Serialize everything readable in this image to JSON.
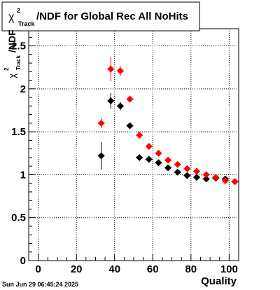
{
  "chart_data": {
    "type": "scatter",
    "title": {
      "symbol": "χ",
      "superscript": "2",
      "subscript": "Track",
      "text": "/NDF for Global Rec All NoHits"
    },
    "ylabel": {
      "symbol": "χ",
      "superscript": "2",
      "subscript": "Track",
      "text": "/NDF"
    },
    "xlabel": "Quality",
    "xlim": [
      -5,
      105
    ],
    "ylim": [
      0,
      2.7
    ],
    "xticks": [
      0,
      20,
      40,
      60,
      80,
      100
    ],
    "xtick_labels": [
      "0",
      "20",
      "40",
      "60",
      "80",
      "100"
    ],
    "yticks": [
      0,
      0.5,
      1,
      1.5,
      2,
      2.5
    ],
    "ytick_labels": [
      "0",
      "0.5",
      "1",
      "1.5",
      "2",
      "2.5"
    ],
    "grid": true,
    "timestamp": "Sun Jun 29 06:45:24 2025",
    "series": [
      {
        "color": "#000000",
        "points": [
          {
            "x": 33,
            "y": 1.22,
            "err": 0.16
          },
          {
            "x": 38,
            "y": 1.86,
            "err": 0.09
          },
          {
            "x": 43,
            "y": 1.8,
            "err": 0.05
          },
          {
            "x": 48,
            "y": 1.57,
            "err": 0.02
          },
          {
            "x": 53,
            "y": 1.2,
            "err": 0.01
          },
          {
            "x": 58,
            "y": 1.18,
            "err": 0.01
          },
          {
            "x": 63,
            "y": 1.14,
            "err": 0.01
          },
          {
            "x": 68,
            "y": 1.08,
            "err": 0.01
          },
          {
            "x": 73,
            "y": 1.03,
            "err": 0.01
          },
          {
            "x": 78,
            "y": 0.99,
            "err": 0.01
          },
          {
            "x": 83,
            "y": 0.97,
            "err": 0.01
          },
          {
            "x": 88,
            "y": 0.95,
            "err": 0.01
          },
          {
            "x": 93,
            "y": 0.96,
            "err": 0.01
          },
          {
            "x": 98,
            "y": 0.95,
            "err": 0.01
          },
          {
            "x": 103,
            "y": 0.92,
            "err": 0.01
          }
        ]
      },
      {
        "color": "#ff0000",
        "points": [
          {
            "x": 33,
            "y": 1.6,
            "err": 0.06
          },
          {
            "x": 38,
            "y": 2.23,
            "err": 0.14
          },
          {
            "x": 43,
            "y": 2.21,
            "err": 0.06
          },
          {
            "x": 48,
            "y": 1.88,
            "err": 0.03
          },
          {
            "x": 53,
            "y": 1.46,
            "err": 0.02
          },
          {
            "x": 58,
            "y": 1.33,
            "err": 0.01
          },
          {
            "x": 63,
            "y": 1.25,
            "err": 0.01
          },
          {
            "x": 68,
            "y": 1.17,
            "err": 0.01
          },
          {
            "x": 73,
            "y": 1.12,
            "err": 0.01
          },
          {
            "x": 78,
            "y": 1.07,
            "err": 0.01
          },
          {
            "x": 83,
            "y": 1.04,
            "err": 0.01
          },
          {
            "x": 88,
            "y": 1.0,
            "err": 0.01
          },
          {
            "x": 93,
            "y": 0.97,
            "err": 0.01
          },
          {
            "x": 98,
            "y": 0.93,
            "err": 0.01
          },
          {
            "x": 103,
            "y": 0.92,
            "err": 0.01
          }
        ]
      }
    ]
  }
}
